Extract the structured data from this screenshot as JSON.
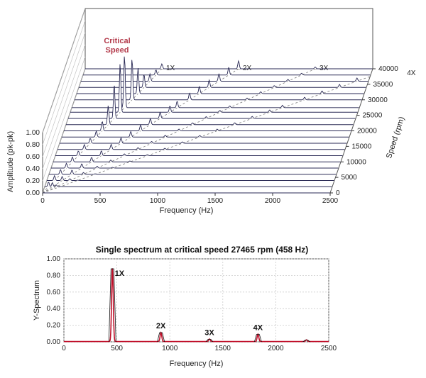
{
  "chart_data": [
    {
      "type": "waterfall",
      "xlabel": "Frequency (Hz)",
      "ylabel": "Amplitude (pk-pk)",
      "zlabel": "Speed (rpm)",
      "xlim": [
        0,
        2500
      ],
      "ylim": [
        0,
        1.0
      ],
      "zlim": [
        0,
        40000
      ],
      "x_ticks": [
        "0",
        "500",
        "1000",
        "1500",
        "2000",
        "2500"
      ],
      "y_ticks": [
        "0.00",
        "0.20",
        "0.40",
        "0.60",
        "0.80",
        "1.00"
      ],
      "z_ticks": [
        "0",
        "5000",
        "10000",
        "15000",
        "20000",
        "25000",
        "30000",
        "35000",
        "40000"
      ],
      "order_lines": [
        "1X",
        "2X",
        "3X",
        "4X"
      ],
      "annotation": {
        "line1": "Critical",
        "line2": "Speed"
      },
      "speeds_rpm": [
        0,
        2000,
        4000,
        6000,
        8000,
        10000,
        12000,
        14000,
        16000,
        18000,
        20000,
        22000,
        24000,
        26000,
        27465,
        30000,
        32000,
        34000,
        36000,
        38000,
        40000
      ],
      "critical_speed_rpm": 27465
    },
    {
      "type": "line",
      "title": "Single spectrum at critical speed 27465 rpm (458 Hz)",
      "xlabel": "Frequency (Hz)",
      "ylabel": "Y-Spectrum",
      "xlim": [
        0,
        2500
      ],
      "ylim": [
        0,
        1.0
      ],
      "x_ticks": [
        "0",
        "500",
        "1000",
        "1500",
        "2000",
        "2500"
      ],
      "y_ticks": [
        "0.00",
        "0.20",
        "0.40",
        "0.60",
        "0.80",
        "1.00"
      ],
      "peaks": [
        {
          "label": "1X",
          "freq": 458,
          "amp": 0.88
        },
        {
          "label": "2X",
          "freq": 916,
          "amp": 0.11
        },
        {
          "label": "3X",
          "freq": 1374,
          "amp": 0.03
        },
        {
          "label": "4X",
          "freq": 1832,
          "amp": 0.09
        },
        {
          "label": "",
          "freq": 2290,
          "amp": 0.02
        }
      ],
      "series_color": "#c0102a"
    }
  ]
}
